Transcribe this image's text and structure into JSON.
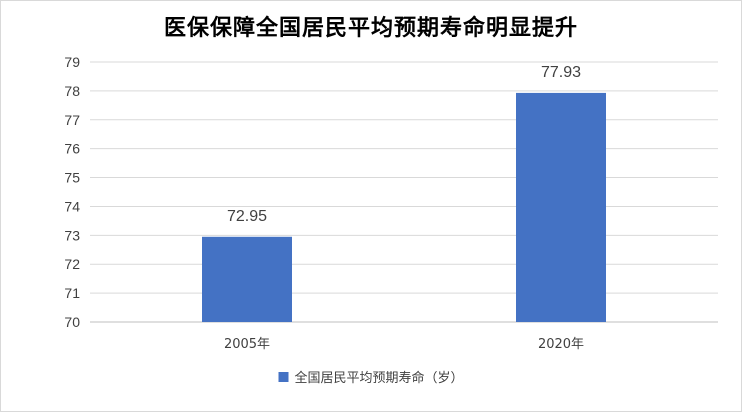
{
  "chart_data": {
    "type": "bar",
    "title": "医保保障全国居民平均预期寿命明显提升",
    "categories": [
      "2005年",
      "2020年"
    ],
    "series": [
      {
        "name": "全国居民平均预期寿命（岁）",
        "values": [
          72.95,
          77.93
        ],
        "labels": [
          "72.95",
          "77.93"
        ]
      }
    ],
    "ylim": [
      70,
      79
    ],
    "yticks": [
      "70",
      "71",
      "72",
      "73",
      "74",
      "75",
      "76",
      "77",
      "78",
      "79"
    ],
    "grid": true,
    "legend": "bottom",
    "colors": {
      "bar": "#4472c4",
      "grid": "#d9d9d9",
      "text": "#404040"
    }
  }
}
